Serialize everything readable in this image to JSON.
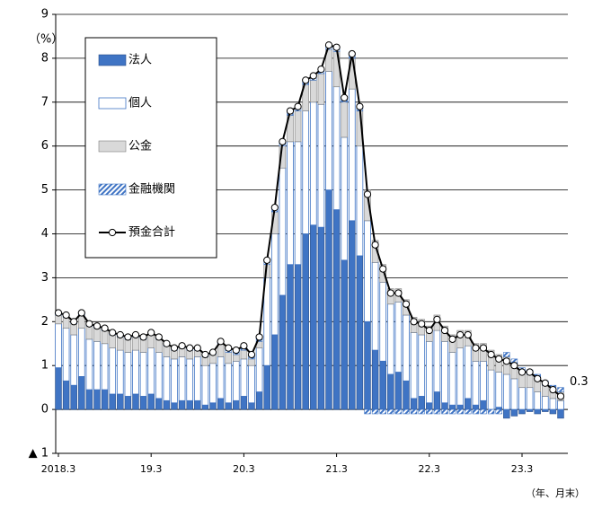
{
  "chart_data": {
    "type": "bar",
    "y_unit": "（%）",
    "x_label": "（年、月末）",
    "categories": [
      "2018.3",
      null,
      null,
      null,
      null,
      null,
      null,
      null,
      null,
      null,
      null,
      null,
      "19.3",
      null,
      null,
      null,
      null,
      null,
      null,
      null,
      null,
      null,
      null,
      null,
      "20.3",
      null,
      null,
      null,
      null,
      null,
      null,
      null,
      null,
      null,
      null,
      null,
      "21.3",
      null,
      null,
      null,
      null,
      null,
      null,
      null,
      null,
      null,
      null,
      null,
      "22.3",
      null,
      null,
      null,
      null,
      null,
      null,
      null,
      null,
      null,
      null,
      null,
      "23.3",
      null,
      null,
      null,
      null,
      null
    ],
    "ylim": [
      -1,
      9
    ],
    "yticks": [
      {
        "value": -1,
        "label": "▲ 1"
      },
      0,
      1,
      2,
      3,
      4,
      5,
      6,
      7,
      8,
      9
    ],
    "grid": true,
    "legend": "upper left",
    "series": [
      {
        "name": "法人",
        "type": "bar",
        "color": "#3f74c4",
        "values": [
          0.95,
          0.65,
          0.55,
          0.75,
          0.45,
          0.45,
          0.45,
          0.35,
          0.35,
          0.3,
          0.35,
          0.3,
          0.35,
          0.25,
          0.2,
          0.15,
          0.2,
          0.2,
          0.2,
          0.1,
          0.15,
          0.25,
          0.15,
          0.2,
          0.3,
          0.15,
          0.4,
          1.0,
          1.7,
          2.6,
          3.3,
          3.3,
          4.0,
          4.2,
          4.15,
          5.0,
          4.55,
          3.4,
          4.3,
          3.5,
          2.0,
          1.35,
          1.1,
          0.8,
          0.85,
          0.65,
          0.25,
          0.3,
          0.15,
          0.4,
          0.15,
          0.1,
          0.1,
          0.25,
          0.1,
          0.2,
          0,
          0.05,
          -0.2,
          -0.15,
          -0.1,
          -0.05,
          -0.1,
          -0.05,
          -0.1,
          -0.2
        ]
      },
      {
        "name": "個人",
        "type": "bar",
        "color": "#ffffff",
        "values": [
          1.0,
          1.2,
          1.15,
          1.1,
          1.15,
          1.1,
          1.05,
          1.05,
          1.0,
          1.0,
          1.0,
          1.0,
          1.05,
          1.05,
          1.0,
          1.0,
          1.0,
          0.95,
          1.0,
          0.9,
          0.9,
          0.95,
          0.9,
          0.9,
          0.85,
          0.85,
          1.0,
          2.0,
          2.3,
          2.9,
          2.8,
          2.8,
          2.8,
          2.8,
          2.8,
          2.7,
          2.8,
          2.8,
          3.0,
          2.5,
          2.3,
          2.0,
          1.8,
          1.6,
          1.6,
          1.5,
          1.5,
          1.4,
          1.4,
          1.4,
          1.4,
          1.2,
          1.3,
          1.2,
          1.0,
          0.9,
          0.9,
          0.8,
          0.8,
          0.7,
          0.5,
          0.5,
          0.4,
          0.3,
          0.25,
          0.2
        ]
      },
      {
        "name": "公金",
        "type": "bar",
        "color": "#d9d9d9",
        "values": [
          0.2,
          0.25,
          0.25,
          0.3,
          0.3,
          0.3,
          0.3,
          0.3,
          0.3,
          0.3,
          0.3,
          0.3,
          0.3,
          0.3,
          0.25,
          0.2,
          0.2,
          0.2,
          0.15,
          0.2,
          0.2,
          0.3,
          0.25,
          0.15,
          0.2,
          0.15,
          0.15,
          0.3,
          0.5,
          0.5,
          0.6,
          0.7,
          0.6,
          0.5,
          0.7,
          0.5,
          0.8,
          0.8,
          0.7,
          0.8,
          0.7,
          0.5,
          0.4,
          0.35,
          0.3,
          0.35,
          0.35,
          0.35,
          0.35,
          0.35,
          0.35,
          0.4,
          0.4,
          0.35,
          0.4,
          0.4,
          0.45,
          0.4,
          0.4,
          0.35,
          0.35,
          0.3,
          0.3,
          0.25,
          0.2,
          0.2
        ]
      },
      {
        "name": "金融機関",
        "type": "bar",
        "color": "#3f74c4",
        "values": [
          0.05,
          0.05,
          0.05,
          0.05,
          0.05,
          0.05,
          0.05,
          0.05,
          0.05,
          0.05,
          0.05,
          0.05,
          0.05,
          0.05,
          0.05,
          0.05,
          0.05,
          0.05,
          0.05,
          0.05,
          0.05,
          0.05,
          0.1,
          0.1,
          0.1,
          0.1,
          0.1,
          0.1,
          0.1,
          0.1,
          0.1,
          0.1,
          0.1,
          0.1,
          0.1,
          0.1,
          0.1,
          0.1,
          0.1,
          0.1,
          -0.1,
          -0.1,
          -0.1,
          -0.1,
          -0.1,
          -0.1,
          -0.1,
          -0.1,
          -0.1,
          -0.1,
          -0.1,
          -0.1,
          -0.1,
          -0.1,
          -0.1,
          -0.1,
          -0.1,
          -0.1,
          0.1,
          0.1,
          0.1,
          0.1,
          0.1,
          0.1,
          0.1,
          0.1
        ]
      },
      {
        "name": "預金合計",
        "type": "line",
        "color": "#000000",
        "values": [
          2.2,
          2.15,
          2.0,
          2.2,
          1.95,
          1.9,
          1.85,
          1.75,
          1.7,
          1.65,
          1.7,
          1.65,
          1.75,
          1.65,
          1.5,
          1.4,
          1.45,
          1.4,
          1.4,
          1.25,
          1.3,
          1.55,
          1.4,
          1.35,
          1.45,
          1.25,
          1.65,
          3.4,
          4.6,
          6.1,
          6.8,
          6.9,
          7.5,
          7.6,
          7.75,
          8.3,
          8.25,
          7.1,
          8.1,
          6.9,
          4.9,
          3.75,
          3.2,
          2.65,
          2.65,
          2.4,
          2.0,
          1.95,
          1.8,
          2.05,
          1.8,
          1.6,
          1.7,
          1.7,
          1.4,
          1.4,
          1.25,
          1.15,
          1.1,
          1.0,
          0.85,
          0.85,
          0.7,
          0.6,
          0.45,
          0.3
        ],
        "value_labels": [
          null,
          null,
          null,
          null,
          null,
          null,
          null,
          null,
          null,
          null,
          null,
          null,
          null,
          null,
          null,
          null,
          null,
          null,
          null,
          null,
          null,
          null,
          null,
          null,
          null,
          null,
          null,
          null,
          null,
          null,
          null,
          null,
          null,
          null,
          null,
          null,
          null,
          null,
          null,
          null,
          null,
          null,
          null,
          null,
          null,
          null,
          null,
          null,
          null,
          null,
          null,
          null,
          null,
          null,
          null,
          null,
          null,
          null,
          null,
          null,
          null,
          null,
          null,
          null,
          null,
          "0.3"
        ]
      }
    ]
  }
}
